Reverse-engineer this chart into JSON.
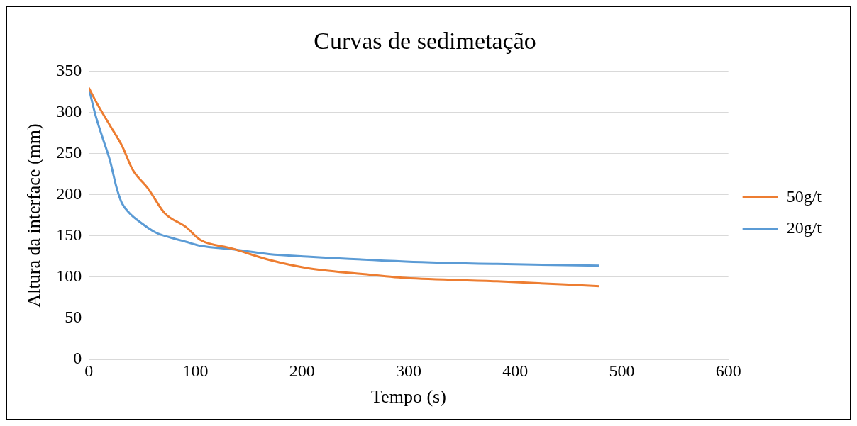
{
  "chart_data": {
    "type": "line",
    "title": "Curvas de sedimetação",
    "xlabel": "Tempo (s)",
    "ylabel": "Altura da interface (mm)",
    "xlim": [
      0,
      600
    ],
    "xticks": [
      0,
      100,
      200,
      300,
      400,
      500,
      600
    ],
    "ylim": [
      0,
      350
    ],
    "yticks": [
      0,
      50,
      100,
      150,
      200,
      250,
      300,
      350
    ],
    "grid": "y",
    "legend": "right",
    "marker": "none",
    "line_style": "solid",
    "series": [
      {
        "name": "50g/t",
        "color": "#ed7d31",
        "x": [
          0,
          9,
          20,
          31,
          41,
          56,
          71,
          91,
          105,
          134,
          169,
          205,
          255,
          297,
          383,
          479
        ],
        "values": [
          330,
          308,
          284,
          260,
          231,
          207,
          178,
          161,
          145,
          135,
          121,
          111,
          104,
          99,
          95,
          89
        ]
      },
      {
        "name": "20g/t",
        "color": "#5b9bd5",
        "x": [
          0,
          6,
          13,
          20,
          26,
          31,
          38,
          48,
          63,
          77,
          91,
          105,
          134,
          169,
          205,
          297,
          383,
          479
        ],
        "values": [
          330,
          298,
          269,
          241,
          209,
          190,
          178,
          167,
          154,
          148,
          143,
          138,
          134,
          128,
          125,
          119,
          116,
          114
        ]
      }
    ]
  }
}
